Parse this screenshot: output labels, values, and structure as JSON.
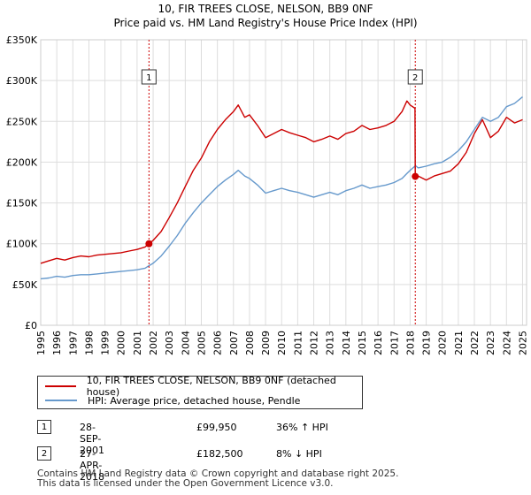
{
  "colors": {
    "property": "#cc0000",
    "hpi": "#6699cc",
    "grid": "#dddddd",
    "vline": "#cc0000"
  },
  "chart_data": {
    "type": "line",
    "title": "10, FIR TREES CLOSE, NELSON, BB9 0NF",
    "subtitle": "Price paid vs. HM Land Registry's House Price Index (HPI)",
    "xlim": [
      1995,
      2025.25
    ],
    "ylim": [
      0,
      350000
    ],
    "y_ticks": [
      0,
      50000,
      100000,
      150000,
      200000,
      250000,
      300000,
      350000
    ],
    "y_tick_labels": [
      "£0",
      "£50K",
      "£100K",
      "£150K",
      "£200K",
      "£250K",
      "£300K",
      "£350K"
    ],
    "x_ticks": [
      1995,
      1996,
      1997,
      1998,
      1999,
      2000,
      2001,
      2002,
      2003,
      2004,
      2005,
      2006,
      2007,
      2008,
      2009,
      2010,
      2011,
      2012,
      2013,
      2014,
      2015,
      2016,
      2017,
      2018,
      2019,
      2020,
      2021,
      2022,
      2023,
      2024,
      2025
    ],
    "grid": true,
    "series": [
      {
        "name": "10, FIR TREES CLOSE, NELSON, BB9 0NF (detached house)",
        "color": "#cc0000",
        "x": [
          1995,
          1995.5,
          1996,
          1996.5,
          1997,
          1997.5,
          1998,
          1998.5,
          1999,
          1999.5,
          2000,
          2000.5,
          2001,
          2001.5,
          2001.74,
          2002,
          2002.5,
          2003,
          2003.5,
          2004,
          2004.5,
          2005,
          2005.5,
          2006,
          2006.5,
          2007,
          2007.3,
          2007.7,
          2008,
          2008.5,
          2009,
          2009.5,
          2010,
          2010.5,
          2011,
          2011.5,
          2012,
          2012.5,
          2013,
          2013.5,
          2014,
          2014.5,
          2015,
          2015.5,
          2016,
          2016.5,
          2017,
          2017.5,
          2017.8,
          2018.0,
          2018.3,
          2018.32,
          2018.5,
          2019,
          2019.5,
          2020,
          2020.5,
          2021,
          2021.5,
          2022,
          2022.5,
          2023,
          2023.5,
          2024,
          2024.5,
          2025
        ],
        "y": [
          76000,
          79000,
          82000,
          80000,
          83000,
          85000,
          84000,
          86000,
          87000,
          88000,
          89000,
          91000,
          93000,
          96000,
          99950,
          104000,
          115000,
          132000,
          150000,
          170000,
          190000,
          205000,
          225000,
          240000,
          252000,
          262000,
          270000,
          255000,
          258000,
          245000,
          230000,
          235000,
          240000,
          236000,
          233000,
          230000,
          225000,
          228000,
          232000,
          228000,
          235000,
          238000,
          245000,
          240000,
          242000,
          245000,
          250000,
          262000,
          275000,
          270000,
          266000,
          182500,
          183000,
          178000,
          183000,
          186000,
          189000,
          198000,
          212000,
          235000,
          252000,
          230000,
          238000,
          255000,
          248000,
          252000
        ]
      },
      {
        "name": "HPI: Average price, detached house, Pendle",
        "color": "#6699cc",
        "x": [
          1995,
          1995.5,
          1996,
          1996.5,
          1997,
          1997.5,
          1998,
          1998.5,
          1999,
          1999.5,
          2000,
          2000.5,
          2001,
          2001.5,
          2001.74,
          2002,
          2002.5,
          2003,
          2003.5,
          2004,
          2004.5,
          2005,
          2005.5,
          2006,
          2006.5,
          2007,
          2007.3,
          2007.7,
          2008,
          2008.5,
          2009,
          2009.5,
          2010,
          2010.5,
          2011,
          2011.5,
          2012,
          2012.5,
          2013,
          2013.5,
          2014,
          2014.5,
          2015,
          2015.5,
          2016,
          2016.5,
          2017,
          2017.5,
          2017.8,
          2018.0,
          2018.3,
          2018.32,
          2018.5,
          2019,
          2019.5,
          2020,
          2020.5,
          2021,
          2021.5,
          2022,
          2022.5,
          2023,
          2023.5,
          2024,
          2024.5,
          2025
        ],
        "y": [
          57000,
          58000,
          60000,
          59000,
          61000,
          62000,
          62000,
          63000,
          64000,
          65000,
          66000,
          67000,
          68000,
          70000,
          73000,
          76000,
          85000,
          97000,
          110000,
          125000,
          138000,
          150000,
          160000,
          170000,
          178000,
          185000,
          190000,
          183000,
          180000,
          172000,
          162000,
          165000,
          168000,
          165000,
          163000,
          160000,
          157000,
          160000,
          163000,
          160000,
          165000,
          168000,
          172000,
          168000,
          170000,
          172000,
          175000,
          180000,
          186000,
          190000,
          195000,
          196000,
          193000,
          195000,
          198000,
          200000,
          206000,
          214000,
          225000,
          240000,
          255000,
          250000,
          255000,
          268000,
          272000,
          280000
        ]
      }
    ],
    "annotations": [
      {
        "label": "1",
        "x": 2001.74,
        "y": 99950
      },
      {
        "label": "2",
        "x": 2018.32,
        "y": 182500
      }
    ]
  },
  "legend": {
    "property_label": "10, FIR TREES CLOSE, NELSON, BB9 0NF (detached house)",
    "hpi_label": "HPI: Average price, detached house, Pendle"
  },
  "sales": [
    {
      "num": "1",
      "date": "28-SEP-2001",
      "price": "£99,950",
      "hpi": "36% ↑ HPI"
    },
    {
      "num": "2",
      "date": "27-APR-2018",
      "price": "£182,500",
      "hpi": "8% ↓ HPI"
    }
  ],
  "footer": {
    "line1": "Contains HM Land Registry data © Crown copyright and database right 2025.",
    "line2": "This data is licensed under the Open Government Licence v3.0."
  }
}
